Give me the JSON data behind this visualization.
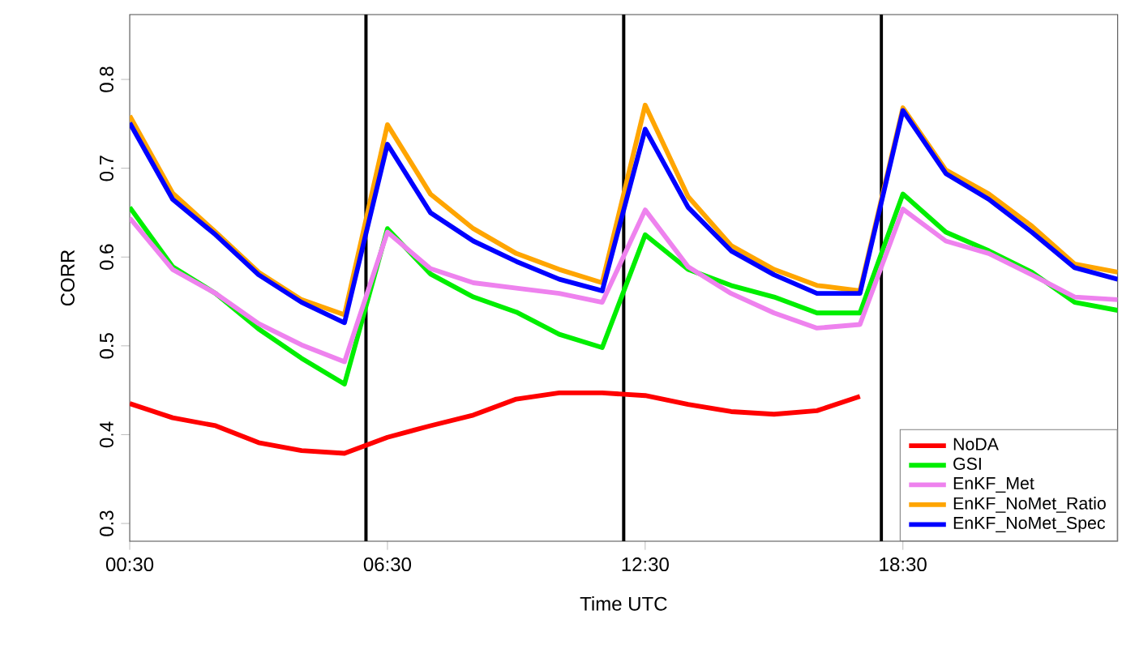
{
  "chart_data": {
    "type": "line",
    "xlabel": "Time UTC",
    "ylabel": "CORR",
    "x": [
      0.5,
      1.5,
      2.5,
      3.5,
      4.5,
      5.5,
      6.5,
      7.5,
      8.5,
      9.5,
      10.5,
      11.5,
      12.5,
      13.5,
      14.5,
      15.5,
      16.5,
      17.5,
      18.5,
      19.5,
      20.5,
      21.5,
      22.5,
      23.5
    ],
    "xlim": [
      0.5,
      23.5
    ],
    "xticks": [
      {
        "value": 0.5,
        "label": "00:30"
      },
      {
        "value": 6.5,
        "label": "06:30"
      },
      {
        "value": 12.5,
        "label": "12:30"
      },
      {
        "value": 18.5,
        "label": "18:30"
      }
    ],
    "ylim": [
      0.28,
      0.873
    ],
    "yticks": [
      0.3,
      0.4,
      0.5,
      0.6,
      0.7,
      0.8
    ],
    "series": [
      {
        "name": "NoDA",
        "color": "#ff0000",
        "values": [
          0.435,
          0.419,
          0.41,
          0.391,
          0.382,
          0.379,
          0.397,
          0.41,
          0.422,
          0.44,
          0.447,
          0.447,
          0.444,
          0.434,
          0.426,
          0.423,
          0.427,
          0.443,
          null,
          null,
          null,
          null,
          null,
          null
        ]
      },
      {
        "name": "GSI",
        "color": "#00ee00",
        "values": [
          0.656,
          0.589,
          0.559,
          0.519,
          0.486,
          0.457,
          0.632,
          0.581,
          0.555,
          0.538,
          0.513,
          0.498,
          0.625,
          0.586,
          0.568,
          0.555,
          0.537,
          0.537,
          0.671,
          0.628,
          0.607,
          0.583,
          0.549,
          0.54
        ]
      },
      {
        "name": "EnKF_Met",
        "color": "#ee82ee",
        "values": [
          0.644,
          0.586,
          0.559,
          0.525,
          0.501,
          0.482,
          0.628,
          0.587,
          0.571,
          0.565,
          0.559,
          0.549,
          0.653,
          0.589,
          0.559,
          0.537,
          0.52,
          0.524,
          0.654,
          0.618,
          0.604,
          0.58,
          0.555,
          0.552
        ]
      },
      {
        "name": "EnKF_NoMet_Ratio",
        "color": "#ffa500",
        "values": [
          0.759,
          0.672,
          0.628,
          0.583,
          0.552,
          0.535,
          0.749,
          0.671,
          0.632,
          0.604,
          0.586,
          0.571,
          0.771,
          0.668,
          0.613,
          0.586,
          0.568,
          0.562,
          0.768,
          0.698,
          0.671,
          0.635,
          0.592,
          0.583
        ]
      },
      {
        "name": "EnKF_NoMet_Spec",
        "color": "#0000ff",
        "values": [
          0.751,
          0.665,
          0.625,
          0.58,
          0.549,
          0.526,
          0.727,
          0.65,
          0.618,
          0.595,
          0.575,
          0.562,
          0.744,
          0.656,
          0.607,
          0.58,
          0.559,
          0.559,
          0.765,
          0.694,
          0.665,
          0.628,
          0.588,
          0.575
        ]
      }
    ],
    "ref_lines": [
      {
        "axis": "x",
        "value": 6,
        "color": "#000000"
      },
      {
        "axis": "x",
        "value": 12,
        "color": "#000000"
      },
      {
        "axis": "x",
        "value": 18,
        "color": "#000000"
      }
    ],
    "legend": "bottom right",
    "grid": false,
    "marker": "none",
    "line_style": "solid"
  }
}
